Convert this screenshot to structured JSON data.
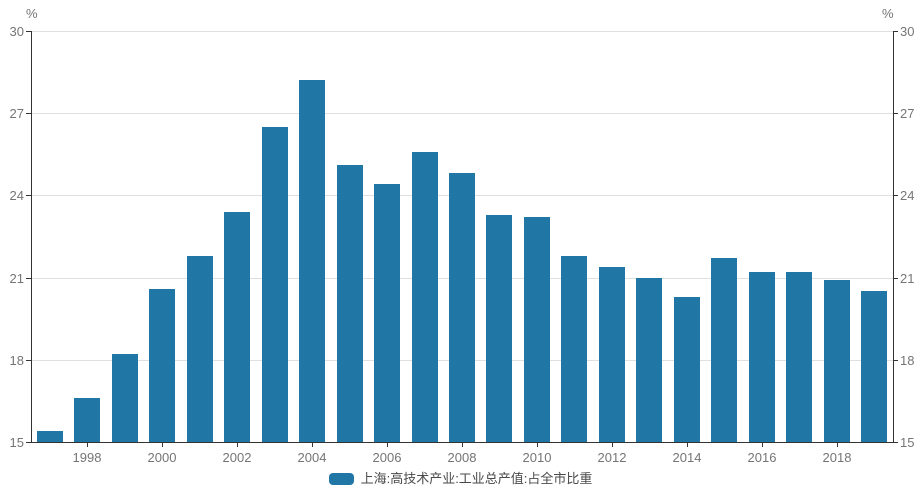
{
  "chart_data": {
    "type": "bar",
    "categories": [
      "1997",
      "1998",
      "1999",
      "2000",
      "2001",
      "2002",
      "2003",
      "2004",
      "2005",
      "2006",
      "2007",
      "2008",
      "2009",
      "2010",
      "2011",
      "2012",
      "2013",
      "2014",
      "2015",
      "2016",
      "2017",
      "2018",
      "2019"
    ],
    "values": [
      15.4,
      16.6,
      18.2,
      20.6,
      21.8,
      23.4,
      26.5,
      28.2,
      25.1,
      24.4,
      25.6,
      24.8,
      23.3,
      23.2,
      21.8,
      21.4,
      21.0,
      20.3,
      21.7,
      21.2,
      21.2,
      20.9,
      20.5
    ],
    "title": "",
    "xlabel": "",
    "ylabel": "%",
    "ylim": [
      15,
      30
    ],
    "yticks": [
      15,
      18,
      21,
      24,
      27,
      30
    ],
    "x_labeled_ticks": [
      "1998",
      "2000",
      "2002",
      "2004",
      "2006",
      "2008",
      "2010",
      "2012",
      "2014",
      "2016",
      "2018"
    ],
    "grid": true,
    "dual_y_axis": true,
    "legend_position": "bottom"
  },
  "ui": {
    "unit_left": "%",
    "unit_right": "%",
    "legend": {
      "label": "上海:高技术产业:工业总产值:占全市比重",
      "swatch_color": "#2076a4"
    },
    "colors": {
      "bar": "#2076a4",
      "gridline": "#e0e0e0",
      "axis": "#333333",
      "tick_label": "#757575",
      "legend_text": "#4a4a4a",
      "background": "#ffffff"
    }
  }
}
